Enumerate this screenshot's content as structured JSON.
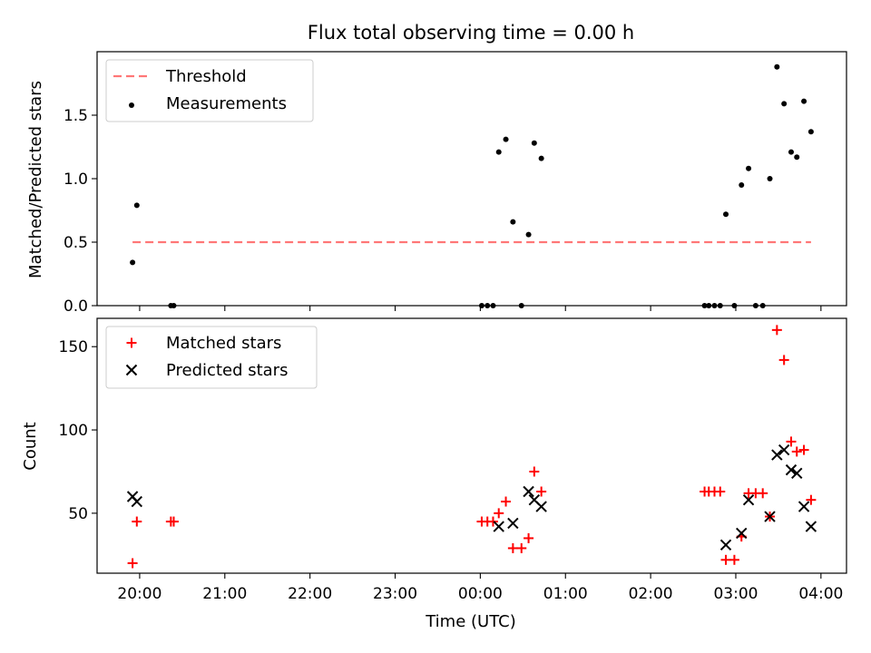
{
  "figure": {
    "title": "Flux total observing time = 0.00 h",
    "xlabel": "Time (UTC)"
  },
  "chart_data": [
    {
      "type": "scatter",
      "panel": "top",
      "ylabel": "Matched/Predicted stars",
      "xlim_hours": [
        -4.5,
        4.3
      ],
      "ylim": [
        0,
        2.0
      ],
      "yticks": [
        0.0,
        0.5,
        1.0,
        1.5
      ],
      "ytick_labels": [
        "0.0",
        "0.5",
        "1.0",
        "1.5"
      ],
      "legend_position": "upper-left",
      "threshold": {
        "name": "Threshold",
        "value": 0.5,
        "x_range": [
          "19:55",
          "03:53"
        ],
        "color": "#ff7777",
        "style": "dashed"
      },
      "series": [
        {
          "name": "Measurements",
          "color": "#000000",
          "marker": "dot",
          "points": [
            {
              "x": "19:55",
              "y": 0.34
            },
            {
              "x": "19:58",
              "y": 0.79
            },
            {
              "x": "20:22",
              "y": 0.0
            },
            {
              "x": "20:24",
              "y": 0.0
            },
            {
              "x": "00:01",
              "y": 0.0
            },
            {
              "x": "00:05",
              "y": 0.0
            },
            {
              "x": "00:09",
              "y": 0.0
            },
            {
              "x": "00:13",
              "y": 1.21
            },
            {
              "x": "00:18",
              "y": 1.31
            },
            {
              "x": "00:23",
              "y": 0.66
            },
            {
              "x": "00:29",
              "y": 0.0
            },
            {
              "x": "00:34",
              "y": 0.56
            },
            {
              "x": "00:38",
              "y": 1.28
            },
            {
              "x": "00:43",
              "y": 1.16
            },
            {
              "x": "02:38",
              "y": 0.0
            },
            {
              "x": "02:41",
              "y": 0.0
            },
            {
              "x": "02:45",
              "y": 0.0
            },
            {
              "x": "02:49",
              "y": 0.0
            },
            {
              "x": "02:53",
              "y": 0.72
            },
            {
              "x": "02:59",
              "y": 0.0
            },
            {
              "x": "03:04",
              "y": 0.95
            },
            {
              "x": "03:09",
              "y": 1.08
            },
            {
              "x": "03:14",
              "y": 0.0
            },
            {
              "x": "03:19",
              "y": 0.0
            },
            {
              "x": "03:24",
              "y": 1.0
            },
            {
              "x": "03:29",
              "y": 1.88
            },
            {
              "x": "03:34",
              "y": 1.59
            },
            {
              "x": "03:39",
              "y": 1.21
            },
            {
              "x": "03:43",
              "y": 1.17
            },
            {
              "x": "03:48",
              "y": 1.61
            },
            {
              "x": "03:53",
              "y": 1.37
            }
          ]
        }
      ]
    },
    {
      "type": "scatter",
      "panel": "bottom",
      "ylabel": "Count",
      "xlim_hours": [
        -4.5,
        4.3
      ],
      "ylim": [
        14,
        167
      ],
      "yticks": [
        50,
        100,
        150
      ],
      "ytick_labels": [
        "50",
        "100",
        "150"
      ],
      "xticks": [
        "20:00",
        "21:00",
        "22:00",
        "23:00",
        "00:00",
        "01:00",
        "02:00",
        "03:00",
        "04:00"
      ],
      "legend_position": "upper-left",
      "series": [
        {
          "name": "Matched stars",
          "color": "#ff0000",
          "marker": "plus",
          "points": [
            {
              "x": "19:55",
              "y": 20
            },
            {
              "x": "19:58",
              "y": 45
            },
            {
              "x": "20:22",
              "y": 45
            },
            {
              "x": "20:24",
              "y": 45
            },
            {
              "x": "00:01",
              "y": 45
            },
            {
              "x": "00:05",
              "y": 45
            },
            {
              "x": "00:09",
              "y": 45
            },
            {
              "x": "00:13",
              "y": 50
            },
            {
              "x": "00:18",
              "y": 57
            },
            {
              "x": "00:23",
              "y": 29
            },
            {
              "x": "00:29",
              "y": 29
            },
            {
              "x": "00:34",
              "y": 35
            },
            {
              "x": "00:38",
              "y": 75
            },
            {
              "x": "00:43",
              "y": 63
            },
            {
              "x": "02:38",
              "y": 63
            },
            {
              "x": "02:41",
              "y": 63
            },
            {
              "x": "02:45",
              "y": 63
            },
            {
              "x": "02:49",
              "y": 63
            },
            {
              "x": "02:53",
              "y": 22
            },
            {
              "x": "02:59",
              "y": 22
            },
            {
              "x": "03:04",
              "y": 36
            },
            {
              "x": "03:09",
              "y": 62
            },
            {
              "x": "03:14",
              "y": 62
            },
            {
              "x": "03:19",
              "y": 62
            },
            {
              "x": "03:24",
              "y": 48
            },
            {
              "x": "03:29",
              "y": 160
            },
            {
              "x": "03:34",
              "y": 142
            },
            {
              "x": "03:39",
              "y": 93
            },
            {
              "x": "03:43",
              "y": 87
            },
            {
              "x": "03:48",
              "y": 88
            },
            {
              "x": "03:53",
              "y": 58
            }
          ]
        },
        {
          "name": "Predicted stars",
          "color": "#000000",
          "marker": "x",
          "points": [
            {
              "x": "19:55",
              "y": 60
            },
            {
              "x": "19:58",
              "y": 57
            },
            {
              "x": "00:13",
              "y": 42
            },
            {
              "x": "00:23",
              "y": 44
            },
            {
              "x": "00:34",
              "y": 63
            },
            {
              "x": "00:38",
              "y": 58
            },
            {
              "x": "00:43",
              "y": 54
            },
            {
              "x": "02:53",
              "y": 31
            },
            {
              "x": "03:04",
              "y": 38
            },
            {
              "x": "03:09",
              "y": 58
            },
            {
              "x": "03:24",
              "y": 48
            },
            {
              "x": "03:29",
              "y": 85
            },
            {
              "x": "03:34",
              "y": 88
            },
            {
              "x": "03:39",
              "y": 76
            },
            {
              "x": "03:43",
              "y": 74
            },
            {
              "x": "03:48",
              "y": 54
            },
            {
              "x": "03:53",
              "y": 42
            }
          ]
        }
      ]
    }
  ]
}
